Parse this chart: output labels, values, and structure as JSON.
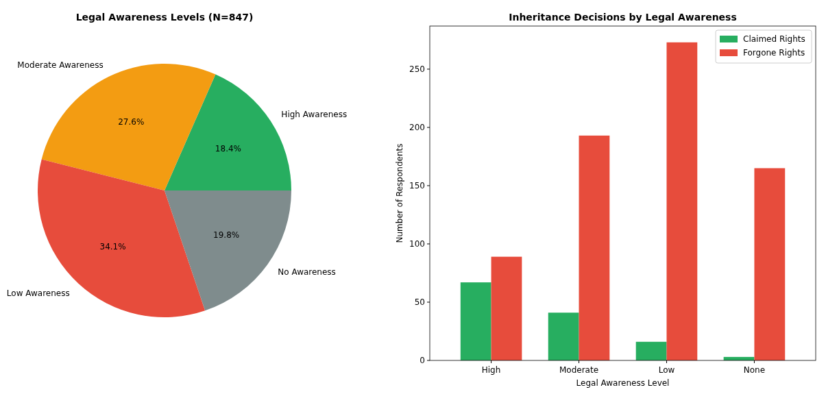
{
  "chart_data": [
    {
      "type": "pie",
      "title": "Legal Awareness Levels (N=847)",
      "categories": [
        "High Awareness",
        "Moderate Awareness",
        "Low Awareness",
        "No Awareness"
      ],
      "values": [
        18.4,
        27.6,
        34.1,
        19.8
      ],
      "colors": [
        "#27ae60",
        "#f39c12",
        "#e74c3c",
        "#7f8c8d"
      ],
      "value_labels": [
        "18.4%",
        "27.6%",
        "34.1%",
        "19.8%"
      ]
    },
    {
      "type": "bar",
      "title": "Inheritance Decisions by Legal Awareness",
      "xlabel": "Legal Awareness Level",
      "ylabel": "Number of Respondents",
      "categories": [
        "High",
        "Moderate",
        "Low",
        "None"
      ],
      "series": [
        {
          "name": "Claimed Rights",
          "color": "#27ae60",
          "values": [
            67,
            41,
            16,
            3
          ]
        },
        {
          "name": "Forgone Rights",
          "color": "#e74c3c",
          "values": [
            89,
            193,
            273,
            165
          ]
        }
      ],
      "ylim": [
        0,
        287
      ],
      "yticks": [
        0,
        50,
        100,
        150,
        200,
        250
      ],
      "legend": "top right"
    }
  ]
}
